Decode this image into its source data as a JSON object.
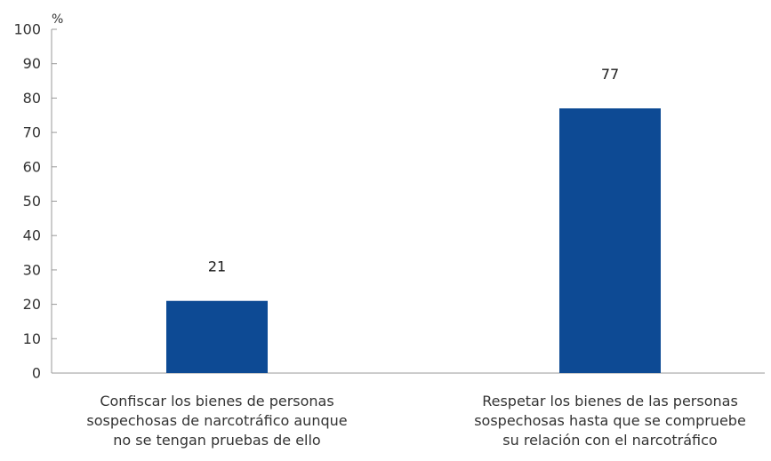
{
  "chart_data": {
    "type": "bar",
    "title": "",
    "xlabel": "",
    "ylabel": "%",
    "ylim": [
      0,
      100
    ],
    "yticks": [
      0,
      10,
      20,
      30,
      40,
      50,
      60,
      70,
      80,
      90,
      100
    ],
    "grid": false,
    "legend": "none",
    "categories": [
      [
        "Confiscar los bienes de personas",
        "sospechosas de narcotráfico aunque",
        "no se tengan pruebas de ello"
      ],
      [
        "Respetar los bienes de las personas",
        "sospechosas hasta que se compruebe",
        "su relación con el narcotráfico"
      ]
    ],
    "values": [
      21,
      77
    ],
    "value_labels": [
      "21",
      "77"
    ],
    "colors": {
      "bar": "#0d4a94",
      "axis": "#999999",
      "text": "#333333"
    }
  }
}
